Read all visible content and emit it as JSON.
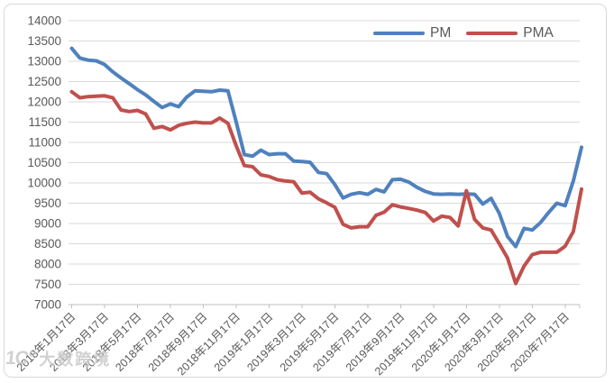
{
  "chart_data": {
    "type": "line",
    "title": "",
    "xlabel": "",
    "ylabel": "",
    "grid": true,
    "legend_position": "top",
    "x": [
      "2018/1/17",
      "2018/2/1",
      "2018/2/17",
      "2018/3/1",
      "2018/3/17",
      "2018/4/1",
      "2018/4/17",
      "2018/5/1",
      "2018/5/17",
      "2018/6/1",
      "2018/6/17",
      "2018/7/1",
      "2018/7/17",
      "2018/8/1",
      "2018/8/17",
      "2018/9/1",
      "2018/9/17",
      "2018/10/1",
      "2018/10/17",
      "2018/11/1",
      "2018/11/17",
      "2018/12/1",
      "2018/12/17",
      "2019/1/1",
      "2019/1/17",
      "2019/2/1",
      "2019/2/17",
      "2019/3/1",
      "2019/3/17",
      "2019/4/1",
      "2019/4/17",
      "2019/5/1",
      "2019/5/17",
      "2019/6/1",
      "2019/6/17",
      "2019/7/1",
      "2019/7/17",
      "2019/8/1",
      "2019/8/17",
      "2019/9/1",
      "2019/9/17",
      "2019/10/1",
      "2019/10/17",
      "2019/11/1",
      "2019/11/17",
      "2019/12/1",
      "2019/12/17",
      "2020/1/1",
      "2020/1/17",
      "2020/2/1",
      "2020/2/17",
      "2020/3/1",
      "2020/3/17",
      "2020/4/1",
      "2020/4/17",
      "2020/5/1",
      "2020/5/17",
      "2020/6/1",
      "2020/6/17",
      "2020/7/1",
      "2020/7/17",
      "2020/8/1",
      "2020/8/17"
    ],
    "series": [
      {
        "name": "PM",
        "color": "#4F81BD",
        "values": [
          13320,
          13080,
          13030,
          13010,
          12920,
          12740,
          12590,
          12450,
          12300,
          12170,
          12010,
          11860,
          11950,
          11880,
          12120,
          12270,
          12260,
          12250,
          12290,
          12270,
          11510,
          10700,
          10660,
          10810,
          10700,
          10720,
          10720,
          10540,
          10530,
          10510,
          10260,
          10230,
          9960,
          9630,
          9720,
          9760,
          9720,
          9840,
          9780,
          10080,
          10090,
          10020,
          9890,
          9790,
          9730,
          9720,
          9730,
          9720,
          9730,
          9720,
          9480,
          9620,
          9250,
          8680,
          8430,
          8880,
          8840,
          9020,
          9270,
          9500,
          9440,
          10050,
          10880
        ]
      },
      {
        "name": "PMA",
        "color": "#C0504D",
        "values": [
          12250,
          12100,
          12130,
          12140,
          12150,
          12100,
          11800,
          11760,
          11790,
          11700,
          11350,
          11390,
          11310,
          11420,
          11470,
          11500,
          11480,
          11480,
          11600,
          11470,
          10920,
          10430,
          10400,
          10200,
          10160,
          10080,
          10050,
          10030,
          9750,
          9770,
          9610,
          9510,
          9400,
          8980,
          8890,
          8920,
          8920,
          9200,
          9280,
          9460,
          9410,
          9370,
          9330,
          9270,
          9060,
          9180,
          9150,
          8940,
          9810,
          9100,
          8890,
          8840,
          8500,
          8150,
          7520,
          7950,
          8230,
          8290,
          8290,
          8290,
          8440,
          8800,
          9850
        ]
      }
    ],
    "y_axis": {
      "min": 7000,
      "max": 14000,
      "step": 500,
      "tick_labels": [
        "14000",
        "13500",
        "13000",
        "12500",
        "12000",
        "11500",
        "11000",
        "10500",
        "10000",
        "9500",
        "9000",
        "8500",
        "8000",
        "7500",
        "7000"
      ]
    },
    "x_axis": {
      "tick_labels": [
        "2018年1月17日",
        "2018年3月17日",
        "2018年5月17日",
        "2018年7月17日",
        "2018年9月17日",
        "2018年11月17日",
        "2019年1月17日",
        "2019年3月17日",
        "2019年5月17日",
        "2019年7月17日",
        "2019年9月17日",
        "2019年11月17日",
        "2020年1月17日",
        "2020年3月17日",
        "2020年5月17日",
        "2020年7月17日"
      ]
    }
  },
  "legend": {
    "items": [
      {
        "label": "PM",
        "color": "#4F81BD"
      },
      {
        "label": "PMA",
        "color": "#C0504D"
      }
    ]
  },
  "watermark": {
    "logo": "1C°",
    "text": "大数跨境"
  },
  "colors": {
    "grid": "#d9d9d9",
    "axis": "#bfbfbf",
    "tick_label": "#595959",
    "frame_border": "#d8d8d8",
    "background": "#ffffff"
  }
}
